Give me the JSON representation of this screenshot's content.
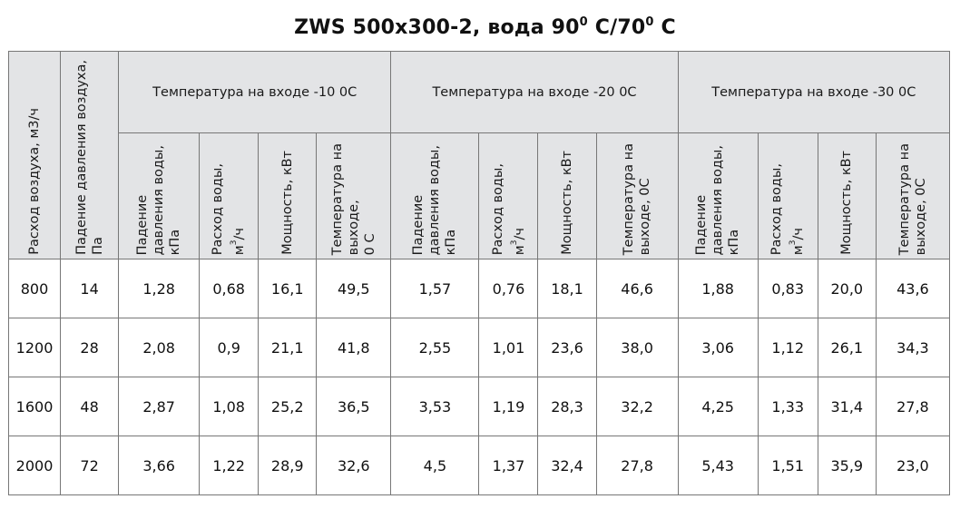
{
  "title": {
    "text_before": "ZWS 500x300-2, вода 90",
    "sup1": "0",
    "mid": " C/70",
    "sup2": "0",
    "after": " C"
  },
  "headers": {
    "airflow": "Расход воздуха, м3/ч",
    "air_pressure_line1": "Падение давления воздуха,",
    "air_pressure_line2": "Па",
    "groups": [
      "Температура на входе -10 0С",
      "Температура на входе -20 0С",
      "Температура на входе -30 0С"
    ],
    "sub": {
      "water_drop": [
        "Падение",
        "давления воды,",
        "кПа"
      ],
      "water_flow_line1": "Расход воды,",
      "water_flow_unit_pre": "м",
      "water_flow_unit_sup": "3",
      "water_flow_unit_post": "/ч",
      "power": "Мощность, кВт",
      "outlet_temp": [
        "Температура на",
        "выходе,",
        "0 С"
      ],
      "outlet_temp_alt": [
        "Температура на",
        "выходе, 0С"
      ]
    }
  },
  "rows": [
    [
      "800",
      "14",
      "1,28",
      "0,68",
      "16,1",
      "49,5",
      "1,57",
      "0,76",
      "18,1",
      "46,6",
      "1,88",
      "0,83",
      "20,0",
      "43,6"
    ],
    [
      "1200",
      "28",
      "2,08",
      "0,9",
      "21,1",
      "41,8",
      "2,55",
      "1,01",
      "23,6",
      "38,0",
      "3,06",
      "1,12",
      "26,1",
      "34,3"
    ],
    [
      "1600",
      "48",
      "2,87",
      "1,08",
      "25,2",
      "36,5",
      "3,53",
      "1,19",
      "28,3",
      "32,2",
      "4,25",
      "1,33",
      "31,4",
      "27,8"
    ],
    [
      "2000",
      "72",
      "3,66",
      "1,22",
      "28,9",
      "32,6",
      "4,5",
      "1,37",
      "32,4",
      "27,8",
      "5,43",
      "1,51",
      "35,9",
      "23,0"
    ]
  ]
}
